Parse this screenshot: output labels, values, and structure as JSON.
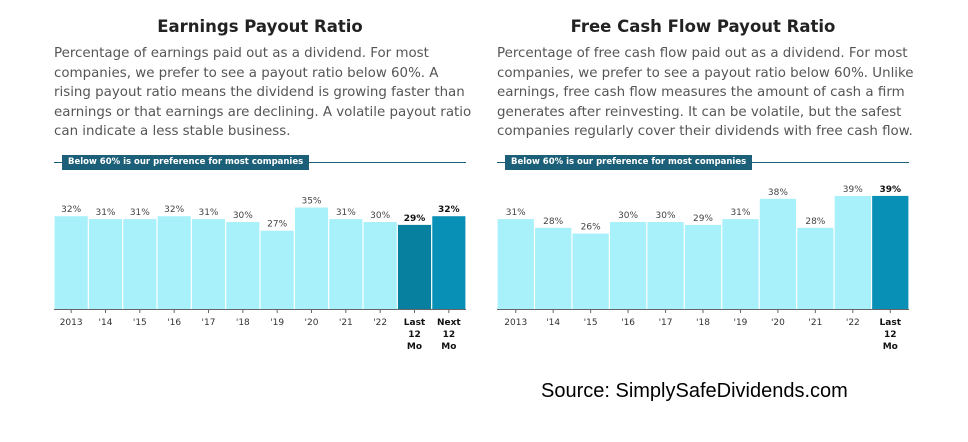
{
  "panels": [
    {
      "title": "Earnings Payout Ratio",
      "description": "Percentage of earnings paid out as a dividend. For most companies, we prefer to see a payout ratio below 60%. A rising payout ratio means the dividend is growing faster than earnings or that earnings are declining. A volatile payout ratio can indicate a less stable business.",
      "reference_label": "Below 60% is our preference for most companies"
    },
    {
      "title": "Free Cash Flow Payout Ratio",
      "description": "Percentage of free cash flow paid out as a dividend. For most companies, we prefer to see a payout ratio below 60%. Unlike earnings, free cash flow measures the amount of cash a firm generates after reinvesting. It can be volatile, but the safest companies regularly cover their dividends with free cash flow.",
      "reference_label": "Below 60% is our preference for most companies"
    }
  ],
  "chart_data": [
    {
      "type": "bar",
      "title": "Earnings Payout Ratio",
      "categories": [
        "2013",
        "'14",
        "'15",
        "'16",
        "'17",
        "'18",
        "'19",
        "'20",
        "'21",
        "'22",
        "Last 12 Mo",
        "Next 12 Mo"
      ],
      "values": [
        32,
        31,
        31,
        32,
        31,
        30,
        27,
        35,
        31,
        30,
        29,
        32
      ],
      "data_labels": [
        "32%",
        "31%",
        "31%",
        "32%",
        "31%",
        "30%",
        "27%",
        "35%",
        "31%",
        "30%",
        "29%",
        "32%"
      ],
      "ylim": [
        0,
        40
      ],
      "colors": [
        "#a8f0fa",
        "#a8f0fa",
        "#a8f0fa",
        "#a8f0fa",
        "#a8f0fa",
        "#a8f0fa",
        "#a8f0fa",
        "#a8f0fa",
        "#a8f0fa",
        "#a8f0fa",
        "#0780a0",
        "#0990b6"
      ],
      "bold": [
        false,
        false,
        false,
        false,
        false,
        false,
        false,
        false,
        false,
        false,
        true,
        true
      ],
      "reference_value": 60
    },
    {
      "type": "bar",
      "title": "Free Cash Flow Payout Ratio",
      "categories": [
        "2013",
        "'14",
        "'15",
        "'16",
        "'17",
        "'18",
        "'19",
        "'20",
        "'21",
        "'22",
        "Last 12 Mo"
      ],
      "values": [
        31,
        28,
        26,
        30,
        30,
        29,
        31,
        38,
        28,
        39,
        39
      ],
      "data_labels": [
        "31%",
        "28%",
        "26%",
        "30%",
        "30%",
        "29%",
        "31%",
        "38%",
        "28%",
        "39%",
        "39%"
      ],
      "ylim": [
        0,
        40
      ],
      "colors": [
        "#a8f0fa",
        "#a8f0fa",
        "#a8f0fa",
        "#a8f0fa",
        "#a8f0fa",
        "#a8f0fa",
        "#a8f0fa",
        "#a8f0fa",
        "#a8f0fa",
        "#a8f0fa",
        "#0990b6"
      ],
      "bold": [
        false,
        false,
        false,
        false,
        false,
        false,
        false,
        false,
        false,
        false,
        true
      ],
      "reference_value": 60
    }
  ],
  "source": "Source: SimplySafeDividends.com"
}
